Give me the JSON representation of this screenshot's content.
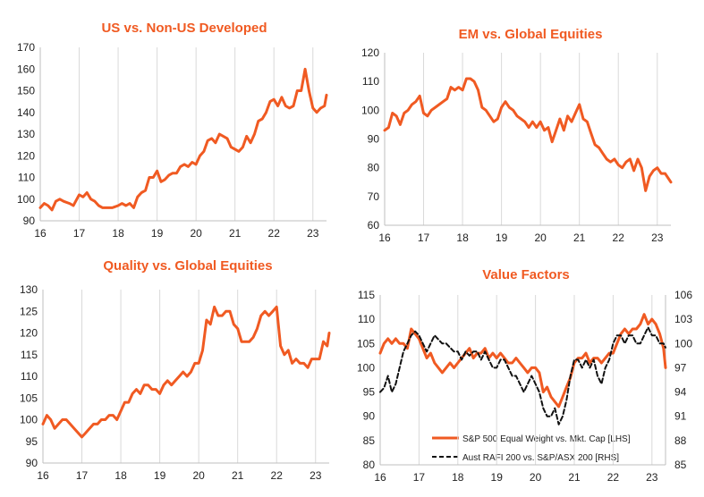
{
  "colors": {
    "orange": "#f05a22",
    "black": "#111111",
    "title": "#f05a22"
  },
  "chart_data": [
    {
      "type": "line",
      "title": "US vs. Non-US Developed",
      "x_ticks": [
        "16",
        "17",
        "18",
        "19",
        "20",
        "21",
        "22",
        "23"
      ],
      "xlim": [
        2016.0,
        2023.35
      ],
      "ylim": [
        90,
        170
      ],
      "y_ticks": [
        90,
        100,
        110,
        120,
        130,
        140,
        150,
        160,
        170
      ],
      "grid": "vertical",
      "series": [
        {
          "color": "#f05a22",
          "dash": false,
          "x": [
            2016.0,
            2016.1,
            2016.2,
            2016.3,
            2016.4,
            2016.5,
            2016.6,
            2016.75,
            2016.85,
            2017.0,
            2017.1,
            2017.2,
            2017.3,
            2017.4,
            2017.5,
            2017.6,
            2017.7,
            2017.85,
            2018.0,
            2018.1,
            2018.2,
            2018.3,
            2018.4,
            2018.5,
            2018.6,
            2018.7,
            2018.8,
            2018.9,
            2019.0,
            2019.1,
            2019.2,
            2019.3,
            2019.4,
            2019.5,
            2019.6,
            2019.7,
            2019.8,
            2019.9,
            2020.0,
            2020.1,
            2020.2,
            2020.3,
            2020.4,
            2020.5,
            2020.6,
            2020.7,
            2020.8,
            2020.9,
            2021.0,
            2021.1,
            2021.2,
            2021.3,
            2021.4,
            2021.5,
            2021.6,
            2021.7,
            2021.8,
            2021.9,
            2022.0,
            2022.1,
            2022.2,
            2022.3,
            2022.4,
            2022.5,
            2022.6,
            2022.7,
            2022.8,
            2022.9,
            2023.0,
            2023.1,
            2023.2,
            2023.3,
            2023.35
          ],
          "y": [
            96,
            98,
            97,
            95,
            99,
            100,
            99,
            98,
            97,
            102,
            101,
            103,
            100,
            99,
            97,
            96,
            96,
            96,
            97,
            98,
            97,
            98,
            96,
            101,
            103,
            104,
            110,
            110,
            113,
            108,
            109,
            111,
            112,
            112,
            115,
            116,
            115,
            117,
            116,
            120,
            122,
            127,
            128,
            126,
            130,
            129,
            128,
            124,
            123,
            122,
            124,
            129,
            126,
            130,
            136,
            137,
            140,
            145,
            146,
            143,
            147,
            143,
            142,
            143,
            150,
            150,
            160,
            150,
            142,
            140,
            142,
            143,
            148
          ]
        }
      ]
    },
    {
      "type": "line",
      "title": "EM vs. Global Equities",
      "x_ticks": [
        "16",
        "17",
        "18",
        "19",
        "20",
        "21",
        "22",
        "23"
      ],
      "xlim": [
        2016.0,
        2023.35
      ],
      "ylim": [
        60,
        120
      ],
      "y_ticks": [
        60,
        70,
        80,
        90,
        100,
        110,
        120
      ],
      "grid": "vertical",
      "series": [
        {
          "color": "#f05a22",
          "dash": false,
          "x": [
            2016.0,
            2016.1,
            2016.2,
            2016.3,
            2016.4,
            2016.5,
            2016.6,
            2016.7,
            2016.8,
            2016.9,
            2017.0,
            2017.1,
            2017.2,
            2017.3,
            2017.4,
            2017.5,
            2017.6,
            2017.7,
            2017.8,
            2017.9,
            2018.0,
            2018.1,
            2018.2,
            2018.3,
            2018.4,
            2018.5,
            2018.6,
            2018.7,
            2018.8,
            2018.9,
            2019.0,
            2019.1,
            2019.2,
            2019.3,
            2019.4,
            2019.5,
            2019.6,
            2019.7,
            2019.8,
            2019.9,
            2020.0,
            2020.1,
            2020.2,
            2020.3,
            2020.4,
            2020.5,
            2020.6,
            2020.7,
            2020.8,
            2020.9,
            2021.0,
            2021.1,
            2021.2,
            2021.3,
            2021.4,
            2021.5,
            2021.6,
            2021.7,
            2021.8,
            2021.9,
            2022.0,
            2022.1,
            2022.2,
            2022.3,
            2022.4,
            2022.5,
            2022.6,
            2022.7,
            2022.8,
            2022.9,
            2023.0,
            2023.1,
            2023.2,
            2023.3,
            2023.35
          ],
          "y": [
            93,
            94,
            99,
            98,
            95,
            99,
            100,
            102,
            103,
            105,
            99,
            98,
            100,
            101,
            102,
            103,
            104,
            108,
            107,
            108,
            107,
            111,
            111,
            110,
            107,
            101,
            100,
            98,
            96,
            97,
            101,
            103,
            101,
            100,
            98,
            97,
            96,
            94,
            96,
            94,
            96,
            93,
            94,
            89,
            93,
            97,
            93,
            98,
            96,
            99,
            102,
            97,
            96,
            92,
            88,
            87,
            85,
            83,
            82,
            83,
            81,
            80,
            82,
            83,
            79,
            83,
            80,
            72,
            77,
            79,
            80,
            78,
            78,
            76,
            75
          ]
        }
      ]
    },
    {
      "type": "line",
      "title": "Quality vs. Global Equities",
      "x_ticks": [
        "16",
        "17",
        "18",
        "19",
        "20",
        "21",
        "22",
        "23"
      ],
      "xlim": [
        2016.0,
        2023.35
      ],
      "ylim": [
        90,
        130
      ],
      "y_ticks": [
        90,
        95,
        100,
        105,
        110,
        115,
        120,
        125,
        130
      ],
      "grid": "vertical",
      "series": [
        {
          "color": "#f05a22",
          "dash": false,
          "x": [
            2016.0,
            2016.1,
            2016.2,
            2016.3,
            2016.4,
            2016.5,
            2016.6,
            2016.7,
            2016.8,
            2016.9,
            2017.0,
            2017.1,
            2017.2,
            2017.3,
            2017.4,
            2017.5,
            2017.6,
            2017.7,
            2017.8,
            2017.9,
            2018.0,
            2018.1,
            2018.2,
            2018.3,
            2018.4,
            2018.5,
            2018.6,
            2018.7,
            2018.8,
            2018.9,
            2019.0,
            2019.1,
            2019.2,
            2019.3,
            2019.4,
            2019.5,
            2019.6,
            2019.7,
            2019.8,
            2019.9,
            2020.0,
            2020.1,
            2020.2,
            2020.3,
            2020.4,
            2020.5,
            2020.6,
            2020.7,
            2020.8,
            2020.9,
            2021.0,
            2021.1,
            2021.2,
            2021.3,
            2021.4,
            2021.5,
            2021.6,
            2021.7,
            2021.8,
            2021.9,
            2022.0,
            2022.1,
            2022.2,
            2022.3,
            2022.4,
            2022.5,
            2022.6,
            2022.7,
            2022.8,
            2022.9,
            2023.0,
            2023.1,
            2023.2,
            2023.3,
            2023.35
          ],
          "y": [
            99,
            101,
            100,
            98,
            99,
            100,
            100,
            99,
            98,
            97,
            96,
            97,
            98,
            99,
            99,
            100,
            100,
            101,
            101,
            100,
            102,
            104,
            104,
            106,
            107,
            106,
            108,
            108,
            107,
            107,
            106,
            108,
            109,
            108,
            109,
            110,
            111,
            110,
            111,
            113,
            113,
            116,
            123,
            122,
            126,
            124,
            124,
            125,
            125,
            122,
            121,
            118,
            118,
            118,
            119,
            121,
            124,
            125,
            124,
            125,
            126,
            117,
            115,
            116,
            113,
            114,
            113,
            113,
            112,
            114,
            114,
            114,
            118,
            117,
            120
          ]
        }
      ]
    },
    {
      "type": "line",
      "title": "Value Factors",
      "x_ticks": [
        "16",
        "17",
        "18",
        "19",
        "20",
        "21",
        "22",
        "23"
      ],
      "xlim": [
        2016.0,
        2023.35
      ],
      "ylim": [
        80,
        115
      ],
      "y_ticks": [
        80,
        85,
        90,
        95,
        100,
        105,
        110,
        115
      ],
      "y2lim": [
        85,
        106
      ],
      "y2_ticks": [
        85,
        88,
        91,
        94,
        97,
        100,
        103,
        106
      ],
      "grid": "vertical",
      "legend": "bottom-center",
      "series": [
        {
          "name": "S&P 500 Equal Weight vs. Mkt. Cap [LHS]",
          "color": "#f05a22",
          "dash": false,
          "axis": "left",
          "x": [
            2016.0,
            2016.1,
            2016.2,
            2016.3,
            2016.4,
            2016.5,
            2016.6,
            2016.7,
            2016.8,
            2016.9,
            2017.0,
            2017.1,
            2017.2,
            2017.3,
            2017.4,
            2017.5,
            2017.6,
            2017.7,
            2017.8,
            2017.9,
            2018.0,
            2018.1,
            2018.2,
            2018.3,
            2018.4,
            2018.5,
            2018.6,
            2018.7,
            2018.8,
            2018.9,
            2019.0,
            2019.1,
            2019.2,
            2019.3,
            2019.4,
            2019.5,
            2019.6,
            2019.7,
            2019.8,
            2019.9,
            2020.0,
            2020.1,
            2020.2,
            2020.3,
            2020.4,
            2020.5,
            2020.6,
            2020.7,
            2020.8,
            2020.9,
            2021.0,
            2021.1,
            2021.2,
            2021.3,
            2021.4,
            2021.5,
            2021.6,
            2021.7,
            2021.8,
            2021.9,
            2022.0,
            2022.1,
            2022.2,
            2022.3,
            2022.4,
            2022.5,
            2022.6,
            2022.7,
            2022.8,
            2022.9,
            2023.0,
            2023.1,
            2023.2,
            2023.3,
            2023.35
          ],
          "y": [
            103,
            105,
            106,
            105,
            106,
            105,
            105,
            104,
            108,
            107,
            106,
            104,
            102,
            103,
            101,
            100,
            99,
            100,
            101,
            100,
            101,
            102,
            103,
            104,
            102,
            103,
            103,
            104,
            102,
            103,
            102,
            103,
            102,
            101,
            101,
            102,
            101,
            100,
            99,
            100,
            100,
            99,
            95,
            96,
            94,
            93,
            92,
            94,
            96,
            98,
            101,
            102,
            102,
            103,
            101,
            102,
            102,
            101,
            102,
            103,
            103,
            105,
            107,
            108,
            107,
            108,
            108,
            109,
            111,
            109,
            110,
            109,
            107,
            104,
            100
          ]
        },
        {
          "name": "Aust RAFI 200 vs. S&P/ASX 200 [RHS]",
          "color": "#111111",
          "dash": true,
          "axis": "right",
          "x": [
            2016.0,
            2016.1,
            2016.2,
            2016.3,
            2016.4,
            2016.5,
            2016.6,
            2016.7,
            2016.8,
            2016.9,
            2017.0,
            2017.1,
            2017.2,
            2017.3,
            2017.4,
            2017.5,
            2017.6,
            2017.7,
            2017.8,
            2017.9,
            2018.0,
            2018.1,
            2018.2,
            2018.3,
            2018.4,
            2018.5,
            2018.6,
            2018.7,
            2018.8,
            2018.9,
            2019.0,
            2019.1,
            2019.2,
            2019.3,
            2019.4,
            2019.5,
            2019.6,
            2019.7,
            2019.8,
            2019.9,
            2020.0,
            2020.1,
            2020.2,
            2020.3,
            2020.4,
            2020.5,
            2020.6,
            2020.7,
            2020.8,
            2020.9,
            2021.0,
            2021.1,
            2021.2,
            2021.3,
            2021.4,
            2021.5,
            2021.6,
            2021.7,
            2021.8,
            2021.9,
            2022.0,
            2022.1,
            2022.2,
            2022.3,
            2022.4,
            2022.5,
            2022.6,
            2022.7,
            2022.8,
            2022.9,
            2023.0,
            2023.1,
            2023.2,
            2023.3,
            2023.35
          ],
          "y": [
            94,
            94.5,
            96,
            94,
            95,
            97,
            99,
            100,
            101,
            101.5,
            101,
            100,
            99,
            100,
            101,
            100.5,
            100,
            100,
            99.5,
            99,
            99,
            98,
            99,
            98.5,
            99,
            99,
            98,
            99,
            98,
            97,
            97,
            98,
            98,
            97,
            96,
            96,
            95,
            94,
            95,
            96,
            95,
            94,
            92,
            91,
            91,
            92,
            90,
            91,
            93,
            96,
            98,
            98,
            97,
            98,
            97,
            98,
            96,
            95,
            97,
            98,
            100,
            101,
            101,
            100,
            101,
            101,
            100,
            100,
            101,
            102,
            101,
            101,
            100,
            100,
            99.5
          ]
        }
      ]
    }
  ]
}
